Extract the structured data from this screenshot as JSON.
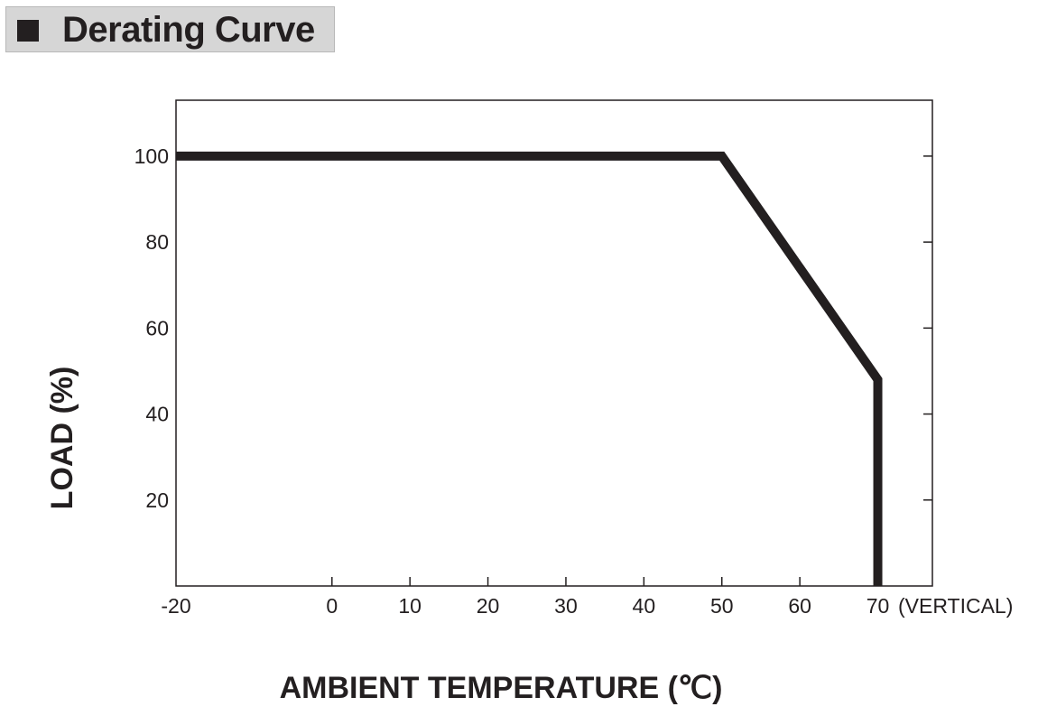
{
  "header": {
    "title": "Derating Curve"
  },
  "chart_data": {
    "type": "line",
    "title": "Derating Curve",
    "xlabel": "AMBIENT TEMPERATURE (℃)",
    "ylabel": "LOAD (%)",
    "x_ticks": [
      "-20",
      "0",
      "10",
      "20",
      "30",
      "40",
      "50",
      "60",
      "70"
    ],
    "x_tick_suffix": "(VERTICAL)",
    "y_ticks": [
      "20",
      "40",
      "60",
      "80",
      "100"
    ],
    "xlim": [
      -20,
      77
    ],
    "ylim": [
      0,
      113
    ],
    "grid": false,
    "series": [
      {
        "x": [
          -20,
          50,
          70,
          70
        ],
        "y": [
          100,
          100,
          48,
          0
        ]
      }
    ],
    "colors": {
      "curve": "#231f20",
      "axis": "#231f20"
    }
  }
}
